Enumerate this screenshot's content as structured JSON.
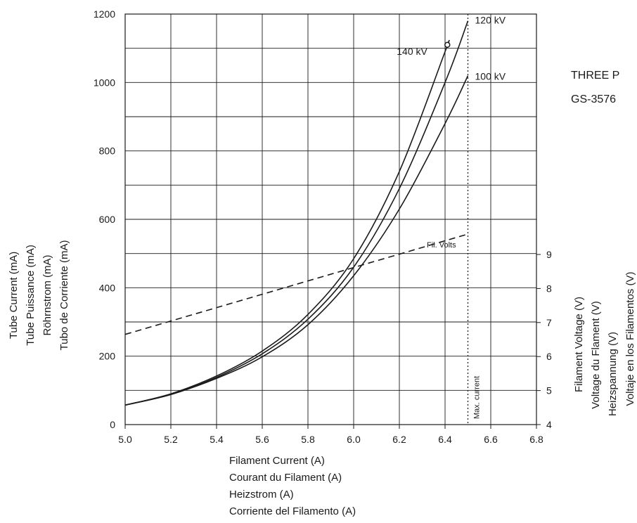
{
  "chart_data": {
    "type": "line",
    "title": "",
    "side_text": [
      "THREE P",
      "GS-3576"
    ],
    "x": {
      "label_lines": [
        "Filament Current (A)",
        "Courant du Filament (A)",
        "Heizstrom (A)",
        "Corriente del Filamento (A)"
      ],
      "range": [
        5.0,
        6.8
      ],
      "ticks": [
        "5.0",
        "5.2",
        "5.4",
        "5.6",
        "5.8",
        "6.0",
        "6.2",
        "6.4",
        "6.6",
        "6.8"
      ]
    },
    "y_left": {
      "label_lines": [
        "Tube Current (mA)",
        "Tube Puissance (mA)",
        "Röhrnstrom (mA)",
        "Tubo de Corriente (mA)"
      ],
      "range": [
        0,
        1200
      ],
      "ticks": [
        "0",
        "200",
        "400",
        "600",
        "800",
        "1000",
        "1200"
      ]
    },
    "y_right": {
      "label_lines": [
        "Filament Voltage (V)",
        "Voltage du Flament  (V)",
        "Heizspannung (V)",
        "Voltaje en los Filamentos (V)"
      ],
      "range": [
        4,
        9
      ],
      "ticks": [
        "4",
        "5",
        "6",
        "7",
        "8",
        "9"
      ]
    },
    "grid": true,
    "series": [
      {
        "name": "140 kV",
        "axis": "left",
        "style": "solid",
        "x": [
          5.0,
          5.2,
          5.4,
          5.6,
          5.8,
          6.0,
          6.2,
          6.4,
          6.41
        ],
        "y": [
          57,
          90,
          142,
          215,
          322,
          485,
          740,
          1090,
          1110
        ]
      },
      {
        "name": "120 kV",
        "axis": "left",
        "style": "solid",
        "x": [
          5.0,
          5.2,
          5.4,
          5.6,
          5.8,
          6.0,
          6.2,
          6.4,
          6.5
        ],
        "y": [
          57,
          88,
          138,
          207,
          308,
          460,
          690,
          1000,
          1180
        ]
      },
      {
        "name": "100 kV",
        "axis": "left",
        "style": "solid",
        "x": [
          5.0,
          5.2,
          5.4,
          5.6,
          5.8,
          6.0,
          6.2,
          6.4,
          6.5
        ],
        "y": [
          57,
          88,
          135,
          198,
          292,
          435,
          630,
          880,
          1020
        ]
      },
      {
        "name": "Fil. Volts",
        "axis": "right",
        "style": "dashed",
        "x": [
          5.0,
          6.5
        ],
        "y": [
          6.65,
          9.6
        ]
      }
    ],
    "annotations": [
      {
        "text": "Max. current",
        "x": 6.5,
        "style": "dotted-vertical"
      }
    ]
  }
}
